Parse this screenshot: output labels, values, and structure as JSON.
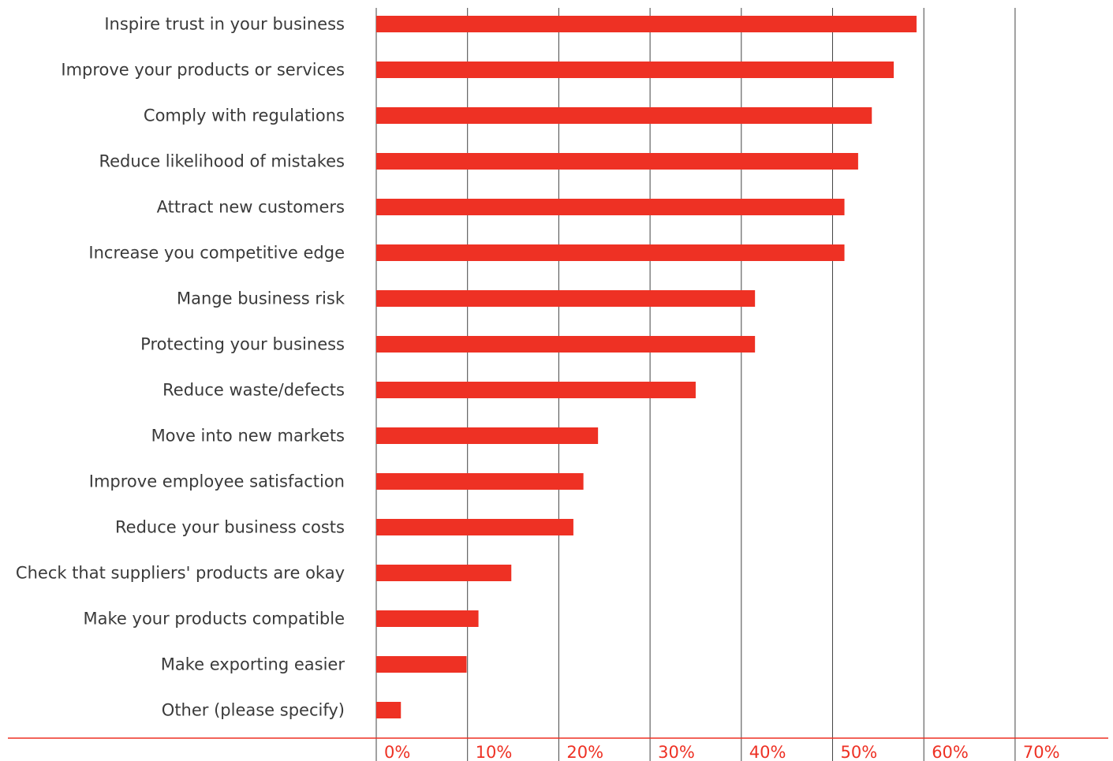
{
  "chart_data": {
    "type": "bar",
    "orientation": "horizontal",
    "categories": [
      "Inspire trust in your business",
      "Improve your products or services",
      "Comply with regulations",
      "Reduce likelihood of mistakes",
      "Attract new customers",
      "Increase you competitive edge",
      "Mange business risk",
      "Protecting your business",
      "Reduce waste/defects",
      "Move into new markets",
      "Improve employee satisfaction",
      "Reduce your business costs",
      "Check that suppliers' products are okay",
      "Make your products compatible",
      "Make exporting easier",
      "Other (please specify)"
    ],
    "values": [
      59.2,
      56.7,
      54.3,
      52.8,
      51.3,
      51.3,
      41.5,
      41.5,
      35.0,
      24.3,
      22.7,
      21.6,
      14.8,
      11.2,
      9.9,
      2.7
    ],
    "xlim": [
      0,
      70
    ],
    "xticks": [
      "0%",
      "10%",
      "20%",
      "30%",
      "40%",
      "50%",
      "60%",
      "70%"
    ],
    "title": "",
    "xlabel": "",
    "ylabel": "",
    "grid": "vertical",
    "legend": "none",
    "colors": {
      "bar": "#ee3124",
      "tick_label": "#ee3124",
      "axis_line": "#ee3124",
      "gridline": "#444444",
      "category_label": "#3a3a3a"
    }
  }
}
